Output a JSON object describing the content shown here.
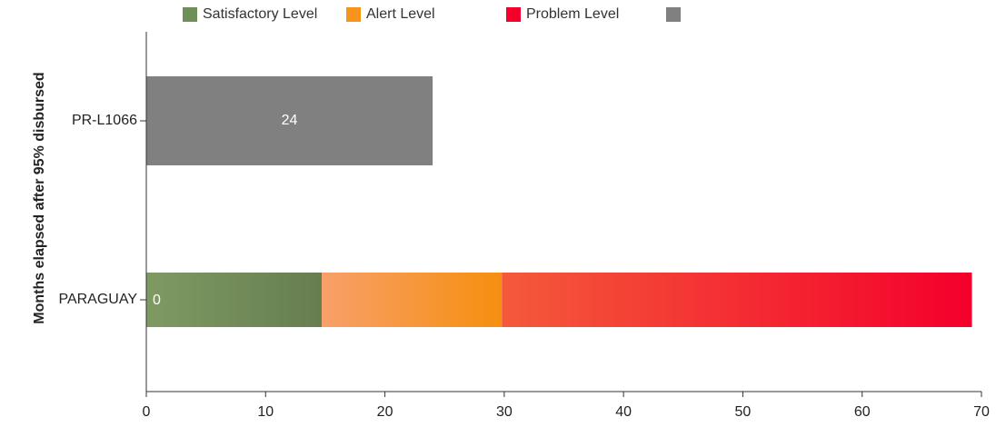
{
  "chart_data": {
    "type": "bar",
    "orientation": "horizontal",
    "stacked": true,
    "title": "",
    "xlabel": "",
    "ylabel": "Months elapsed after 95% disbursed",
    "xlim": [
      0,
      70
    ],
    "xticks": [
      0,
      10,
      20,
      30,
      40,
      50,
      60,
      70
    ],
    "categories": [
      "PR-L1066",
      "PARAGUAY"
    ],
    "legend": {
      "position": "top",
      "entries": [
        {
          "name": "Satisfactory Level",
          "color": "#6f8f58"
        },
        {
          "name": "Alert Level",
          "color": "#f7941d"
        },
        {
          "name": "Problem Level",
          "color": "#f4002b"
        },
        {
          "name": "",
          "color": "#808080"
        }
      ]
    },
    "bars": [
      {
        "category": "PR-L1066",
        "segments": [
          {
            "series": "value",
            "start": 0,
            "end": 24,
            "color": "#808080"
          }
        ],
        "label": "24"
      },
      {
        "category": "PARAGUAY",
        "segments": [
          {
            "series": "Satisfactory Level",
            "start": 0,
            "end": 14.7,
            "color_from": "#7f9a63",
            "color_to": "#667e50"
          },
          {
            "series": "Alert Level",
            "start": 14.7,
            "end": 29.8,
            "color_from": "#f7a06a",
            "color_to": "#f68f0f"
          },
          {
            "series": "Problem Level",
            "start": 29.8,
            "end": 69.2,
            "color_from": "#f45a3a",
            "color_to": "#f4002b"
          }
        ],
        "label": "0"
      }
    ]
  }
}
